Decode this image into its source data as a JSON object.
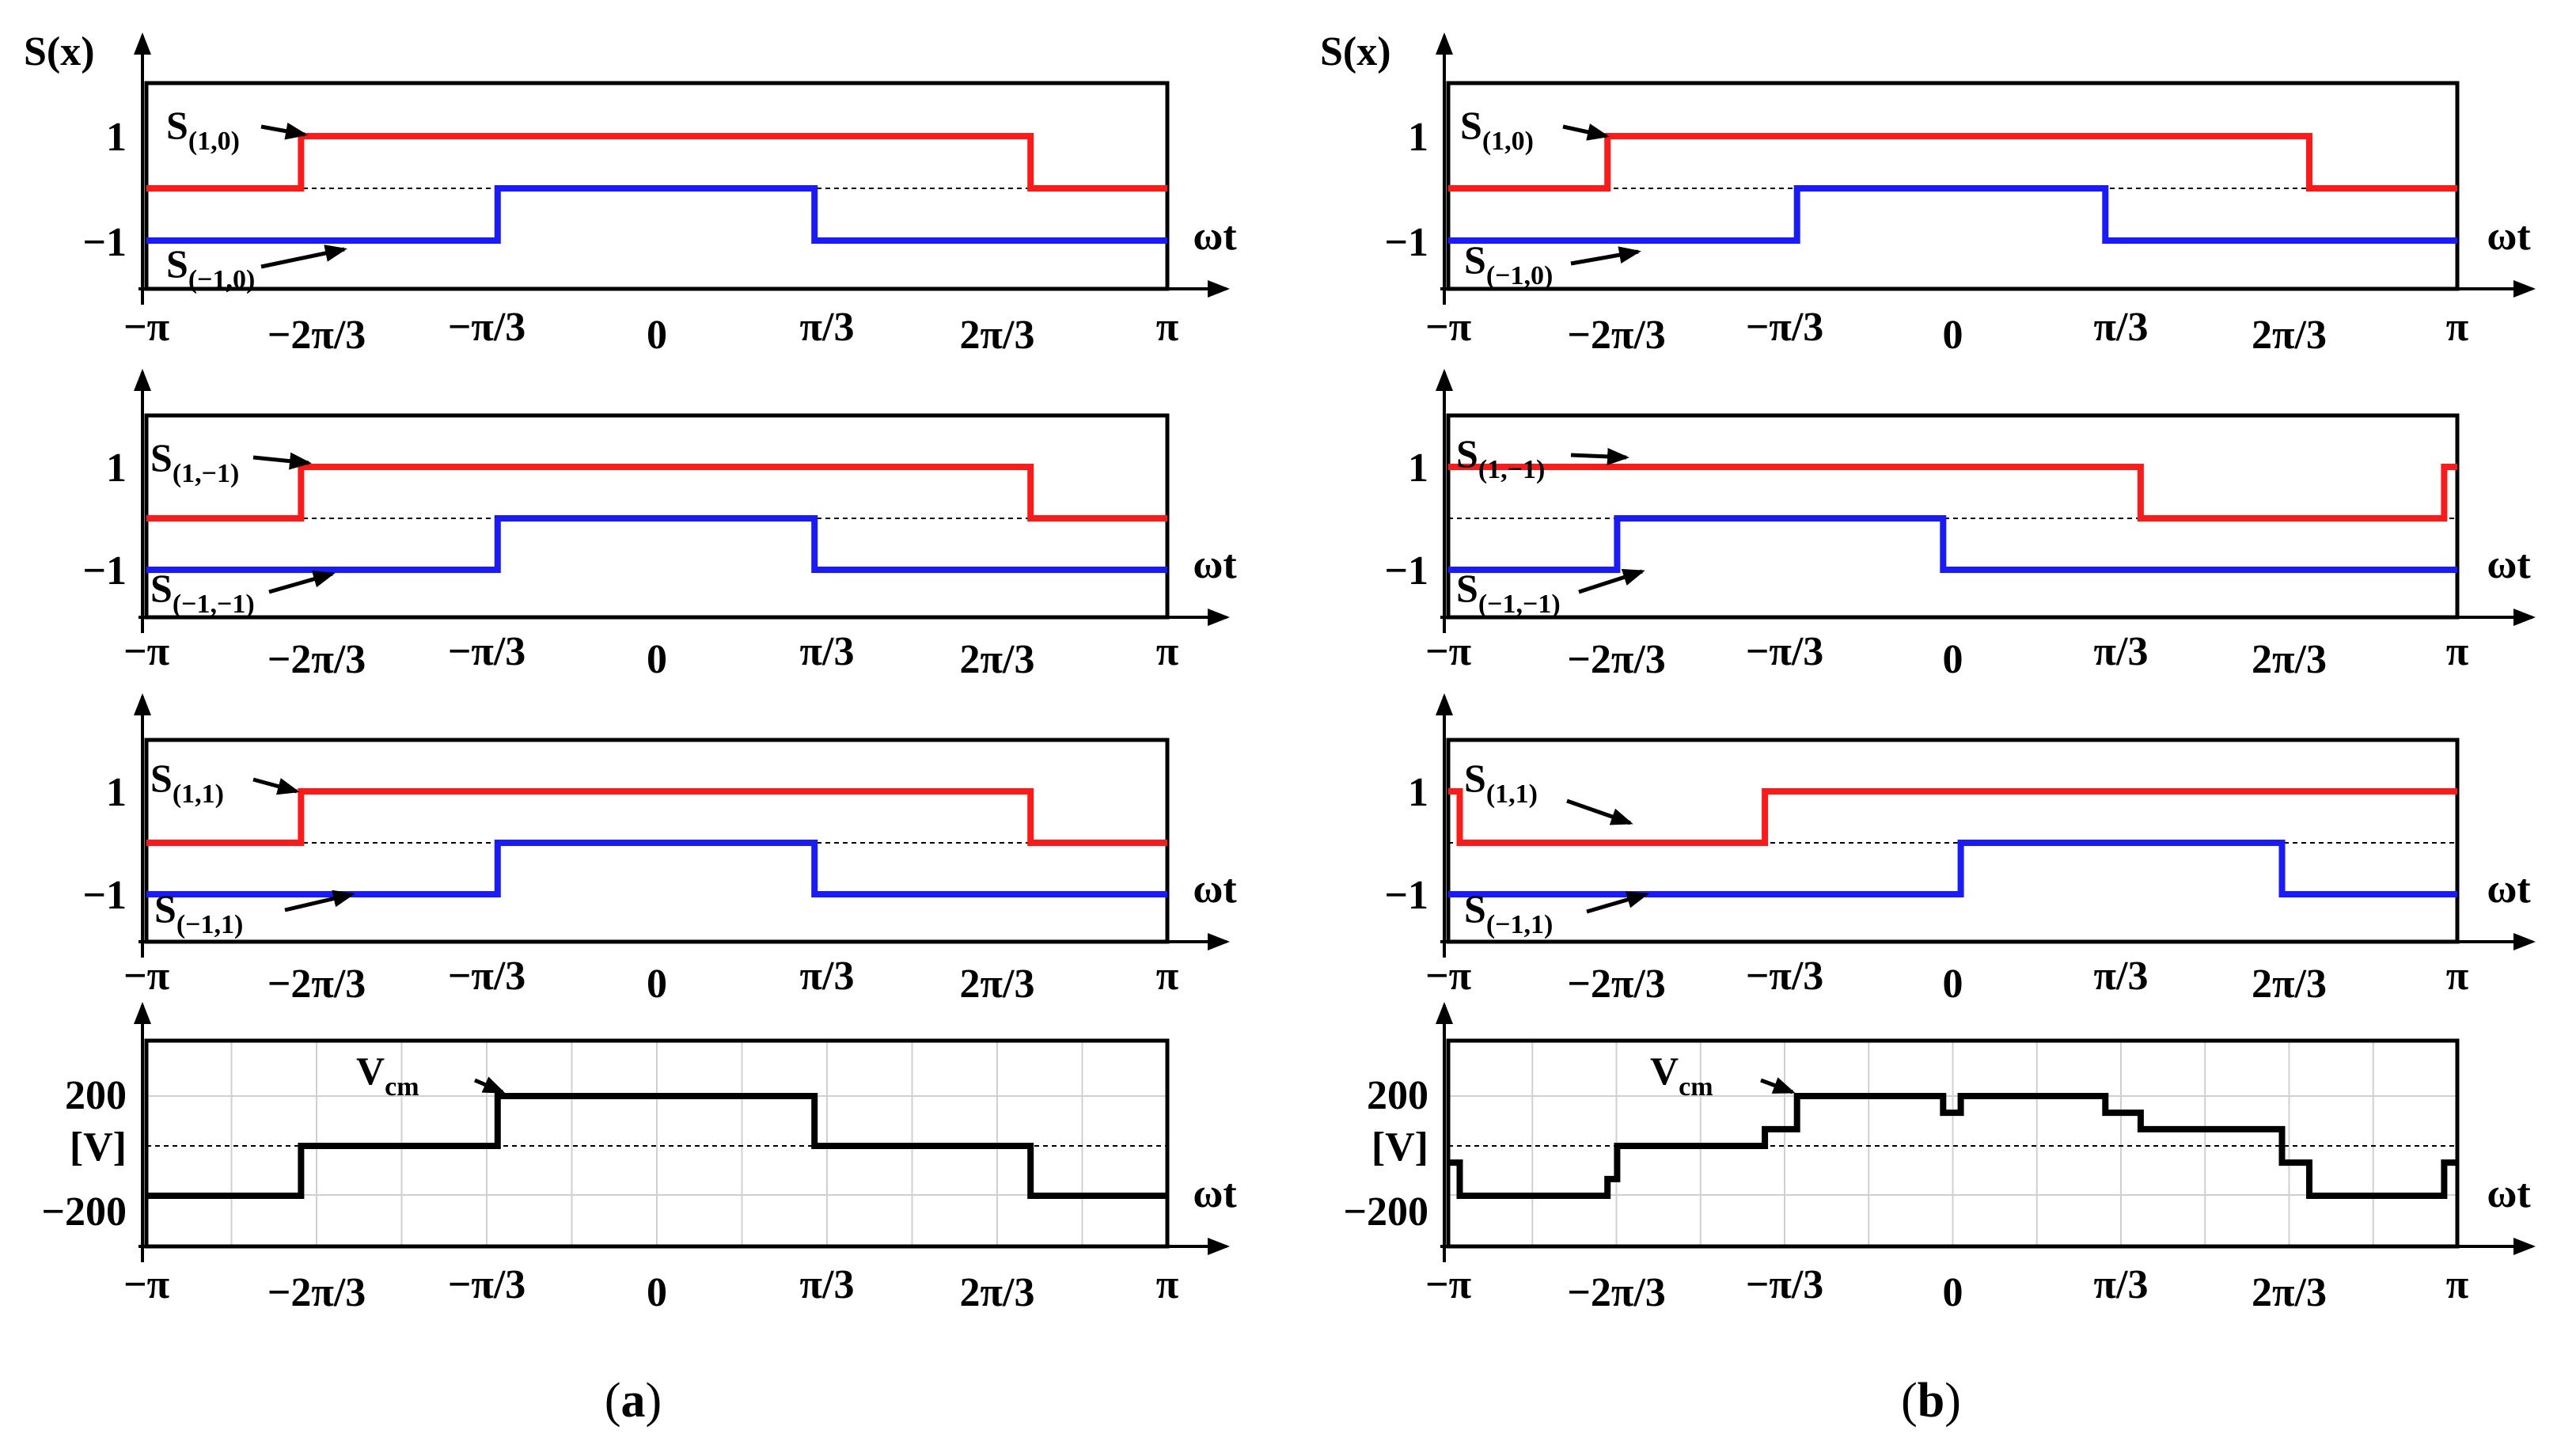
{
  "figure": {
    "ylabel_top": "S(x)",
    "xlabel": "ωt",
    "captions": [
      "a",
      "b"
    ]
  },
  "colors": {
    "red": "#ff1a1a",
    "blue": "#1a1aff",
    "black": "#000000",
    "grid": "#d0d0d0"
  },
  "chart_data": [
    {
      "type": "line",
      "panel": "a",
      "row": 1,
      "x_ticks": [
        "−π",
        "−2π/3",
        "−π/3",
        "0",
        "π/3",
        "2π/3",
        "π"
      ],
      "y_ticks": [
        "1",
        "−1"
      ],
      "ylim": [
        -1,
        1
      ],
      "xlabel": "ωt",
      "series": [
        {
          "name": "S(1,0)",
          "label_main": "S",
          "label_sub": "(1,0)",
          "color": "#ff1a1a",
          "points": [
            [
              -3.1416,
              0
            ],
            [
              -2.19,
              0
            ],
            [
              -2.19,
              1
            ],
            [
              2.3,
              1
            ],
            [
              2.3,
              0
            ],
            [
              3.1416,
              0
            ]
          ]
        },
        {
          "name": "S(−1,0)",
          "label_main": "S",
          "label_sub": "(−1,0)",
          "color": "#1a1aff",
          "points": [
            [
              -3.1416,
              -1
            ],
            [
              -0.98,
              -1
            ],
            [
              -0.98,
              0
            ],
            [
              0.97,
              0
            ],
            [
              0.97,
              -1
            ],
            [
              3.1416,
              -1
            ]
          ]
        }
      ]
    },
    {
      "type": "line",
      "panel": "a",
      "row": 2,
      "x_ticks": [
        "−π",
        "−2π/3",
        "−π/3",
        "0",
        "π/3",
        "2π/3",
        "π"
      ],
      "y_ticks": [
        "1",
        "−1"
      ],
      "ylim": [
        -1,
        1
      ],
      "xlabel": "ωt",
      "series": [
        {
          "name": "S(1,−1)",
          "label_main": "S",
          "label_sub": "(1,−1)",
          "color": "#ff1a1a",
          "points": [
            [
              -3.1416,
              0
            ],
            [
              -2.19,
              0
            ],
            [
              -2.19,
              1
            ],
            [
              2.3,
              1
            ],
            [
              2.3,
              0
            ],
            [
              3.1416,
              0
            ]
          ]
        },
        {
          "name": "S(−1,−1)",
          "label_main": "S",
          "label_sub": "(−1,−1)",
          "color": "#1a1aff",
          "points": [
            [
              -3.1416,
              -1
            ],
            [
              -0.98,
              -1
            ],
            [
              -0.98,
              0
            ],
            [
              0.97,
              0
            ],
            [
              0.97,
              -1
            ],
            [
              3.1416,
              -1
            ]
          ]
        }
      ]
    },
    {
      "type": "line",
      "panel": "a",
      "row": 3,
      "x_ticks": [
        "−π",
        "−2π/3",
        "−π/3",
        "0",
        "π/3",
        "2π/3",
        "π"
      ],
      "y_ticks": [
        "1",
        "−1"
      ],
      "ylim": [
        -1,
        1
      ],
      "xlabel": "ωt",
      "series": [
        {
          "name": "S(1,1)",
          "label_main": "S",
          "label_sub": "(1,1)",
          "color": "#ff1a1a",
          "points": [
            [
              -3.1416,
              0
            ],
            [
              -2.19,
              0
            ],
            [
              -2.19,
              1
            ],
            [
              2.3,
              1
            ],
            [
              2.3,
              0
            ],
            [
              3.1416,
              0
            ]
          ]
        },
        {
          "name": "S(−1,1)",
          "label_main": "S",
          "label_sub": "(−1,1)",
          "color": "#1a1aff",
          "points": [
            [
              -3.1416,
              -1
            ],
            [
              -0.98,
              -1
            ],
            [
              -0.98,
              0
            ],
            [
              0.97,
              0
            ],
            [
              0.97,
              -1
            ],
            [
              3.1416,
              -1
            ]
          ]
        }
      ]
    },
    {
      "type": "line",
      "panel": "a",
      "row": 4,
      "x_ticks": [
        "−π",
        "−2π/3",
        "−π/3",
        "0",
        "π/3",
        "2π/3",
        "π"
      ],
      "y_ticks": [
        "200",
        "[V]",
        "−200"
      ],
      "ylim": [
        -230,
        230
      ],
      "xlabel": "ωt",
      "grid": true,
      "series": [
        {
          "name": "Vcm",
          "label_main": "V",
          "label_sub": "cm",
          "color": "#000000",
          "points": [
            [
              -3.1416,
              -200
            ],
            [
              -2.19,
              -200
            ],
            [
              -2.19,
              0
            ],
            [
              -0.98,
              0
            ],
            [
              -0.98,
              200
            ],
            [
              0.97,
              200
            ],
            [
              0.97,
              0
            ],
            [
              2.3,
              0
            ],
            [
              2.3,
              -200
            ],
            [
              3.1416,
              -200
            ]
          ]
        }
      ]
    },
    {
      "type": "line",
      "panel": "b",
      "row": 1,
      "x_ticks": [
        "−π",
        "−2π/3",
        "−π/3",
        "0",
        "π/3",
        "2π/3",
        "π"
      ],
      "y_ticks": [
        "1",
        "−1"
      ],
      "ylim": [
        -1,
        1
      ],
      "xlabel": "ωt",
      "series": [
        {
          "name": "S(1,0)",
          "label_main": "S",
          "label_sub": "(1,0)",
          "color": "#ff1a1a",
          "points": [
            [
              -3.1416,
              0
            ],
            [
              -2.15,
              0
            ],
            [
              -2.15,
              1
            ],
            [
              2.22,
              1
            ],
            [
              2.22,
              0
            ],
            [
              3.1416,
              0
            ]
          ]
        },
        {
          "name": "S(−1,0)",
          "label_main": "S",
          "label_sub": "(−1,0)",
          "color": "#1a1aff",
          "points": [
            [
              -3.1416,
              -1
            ],
            [
              -0.97,
              -1
            ],
            [
              -0.97,
              0
            ],
            [
              0.95,
              0
            ],
            [
              0.95,
              -1
            ],
            [
              3.1416,
              -1
            ]
          ]
        }
      ]
    },
    {
      "type": "line",
      "panel": "b",
      "row": 2,
      "x_ticks": [
        "−π",
        "−2π/3",
        "−π/3",
        "0",
        "π/3",
        "2π/3",
        "π"
      ],
      "y_ticks": [
        "1",
        "−1"
      ],
      "ylim": [
        -1,
        1
      ],
      "xlabel": "ωt",
      "series": [
        {
          "name": "S(1,−1)",
          "label_main": "S",
          "label_sub": "(1,−1)",
          "color": "#ff1a1a",
          "points": [
            [
              -3.1416,
              1
            ],
            [
              1.17,
              1
            ],
            [
              1.17,
              0
            ],
            [
              3.06,
              0
            ],
            [
              3.06,
              1
            ],
            [
              3.1416,
              1
            ]
          ]
        },
        {
          "name": "S(−1,−1)",
          "label_main": "S",
          "label_sub": "(−1,−1)",
          "color": "#1a1aff",
          "points": [
            [
              -3.1416,
              -1
            ],
            [
              -2.09,
              -1
            ],
            [
              -2.09,
              0
            ],
            [
              -0.06,
              0
            ],
            [
              -0.06,
              -1
            ],
            [
              3.1416,
              -1
            ]
          ]
        }
      ]
    },
    {
      "type": "line",
      "panel": "b",
      "row": 3,
      "x_ticks": [
        "−π",
        "−2π/3",
        "−π/3",
        "0",
        "π/3",
        "2π/3",
        "π"
      ],
      "y_ticks": [
        "1",
        "−1"
      ],
      "ylim": [
        -1,
        1
      ],
      "xlabel": "ωt",
      "series": [
        {
          "name": "S(1,1)",
          "label_main": "S",
          "label_sub": "(1,1)",
          "color": "#ff1a1a",
          "points": [
            [
              -3.1416,
              1
            ],
            [
              -3.07,
              1
            ],
            [
              -3.07,
              0
            ],
            [
              -1.17,
              0
            ],
            [
              -1.17,
              1
            ],
            [
              3.1416,
              1
            ]
          ]
        },
        {
          "name": "S(−1,1)",
          "label_main": "S",
          "label_sub": "(−1,1)",
          "color": "#1a1aff",
          "points": [
            [
              -3.1416,
              -1
            ],
            [
              0.05,
              -1
            ],
            [
              0.05,
              0
            ],
            [
              2.05,
              0
            ],
            [
              2.05,
              -1
            ],
            [
              3.1416,
              -1
            ]
          ]
        }
      ]
    },
    {
      "type": "line",
      "panel": "b",
      "row": 4,
      "x_ticks": [
        "−π",
        "−2π/3",
        "−π/3",
        "0",
        "π/3",
        "2π/3",
        "π"
      ],
      "y_ticks": [
        "200",
        "[V]",
        "−200"
      ],
      "ylim": [
        -230,
        230
      ],
      "xlabel": "ωt",
      "grid": true,
      "series": [
        {
          "name": "Vcm",
          "label_main": "V",
          "label_sub": "cm",
          "color": "#000000",
          "points": [
            [
              -3.1416,
              -67
            ],
            [
              -3.07,
              -67
            ],
            [
              -3.07,
              -200
            ],
            [
              -2.15,
              -200
            ],
            [
              -2.15,
              -133
            ],
            [
              -2.09,
              -133
            ],
            [
              -2.09,
              -67
            ],
            [
              -2.09,
              0
            ],
            [
              -1.17,
              0
            ],
            [
              -1.17,
              67
            ],
            [
              -0.97,
              67
            ],
            [
              -0.97,
              133
            ],
            [
              -0.97,
              200
            ],
            [
              -0.06,
              200
            ],
            [
              -0.06,
              133
            ],
            [
              0.05,
              133
            ],
            [
              0.05,
              200
            ],
            [
              0.95,
              200
            ],
            [
              0.95,
              133
            ],
            [
              1.17,
              133
            ],
            [
              1.17,
              67
            ],
            [
              2.05,
              67
            ],
            [
              2.05,
              0
            ],
            [
              2.05,
              -67
            ],
            [
              2.22,
              -67
            ],
            [
              2.22,
              -133
            ],
            [
              2.22,
              -200
            ],
            [
              3.06,
              -200
            ],
            [
              3.06,
              -67
            ],
            [
              3.1416,
              -67
            ]
          ]
        }
      ]
    }
  ]
}
